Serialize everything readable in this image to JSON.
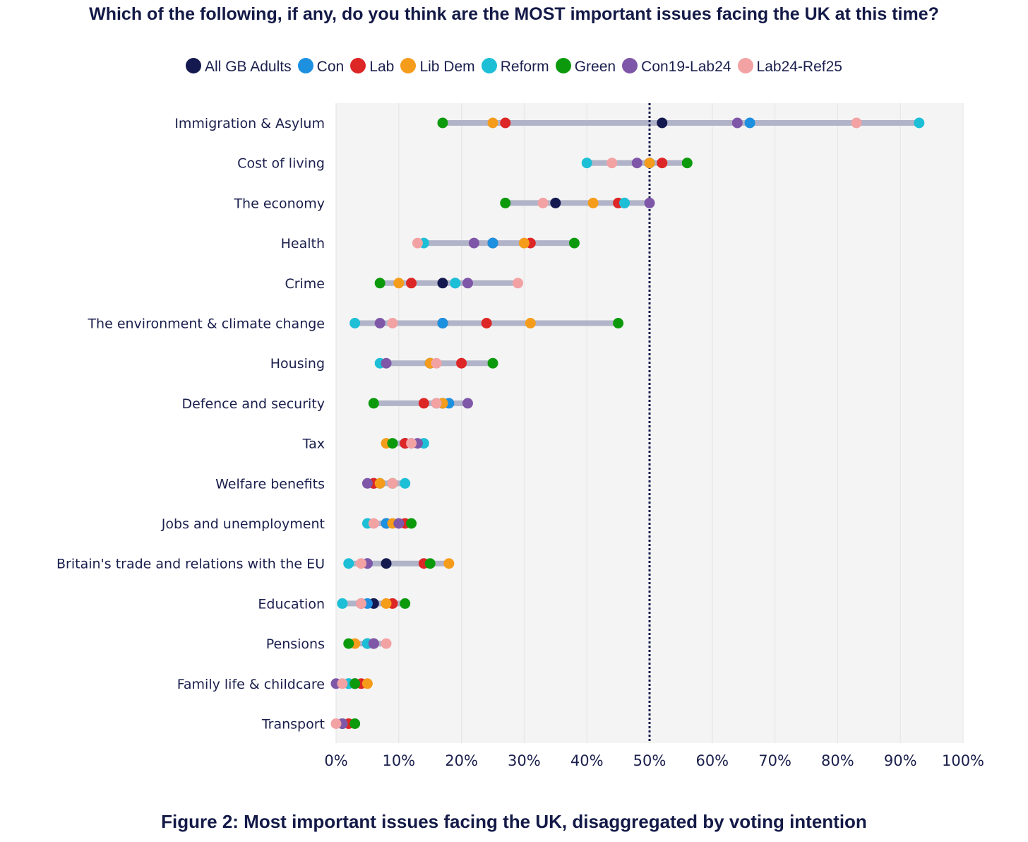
{
  "chart_data": {
    "type": "scatter",
    "subtype": "dumbbell",
    "title": "Which of the following, if any, do you think are the MOST important issues facing the UK at this time?",
    "caption": "Figure 2: Most important issues facing the UK, disaggregated by voting intention",
    "x_axis": {
      "range": [
        0,
        100
      ],
      "ticks": [
        0,
        10,
        20,
        30,
        40,
        50,
        60,
        70,
        80,
        90,
        100
      ],
      "tick_labels": [
        "0%",
        "10%",
        "20%",
        "30%",
        "40%",
        "50%",
        "60%",
        "70%",
        "80%",
        "90%",
        "100%"
      ]
    },
    "reference_line": {
      "x": 50,
      "style": "dotted"
    },
    "grid": true,
    "legend_position": "top",
    "categories": [
      "Immigration & Asylum",
      "Cost of living",
      "The economy",
      "Health",
      "Crime",
      "The environment & climate change",
      "Housing",
      "Defence and security",
      "Tax",
      "Welfare benefits",
      "Jobs and unemployment",
      "Britain's trade and relations with the EU",
      "Education",
      "Pensions",
      "Family life & childcare",
      "Transport"
    ],
    "series": [
      {
        "name": "All GB Adults",
        "color": "#141a4f",
        "values": [
          52,
          50,
          35,
          25,
          17,
          17,
          15,
          17,
          11,
          6,
          8,
          8,
          6,
          5,
          3,
          1
        ]
      },
      {
        "name": "Con",
        "color": "#1e90e0",
        "values": [
          66,
          50,
          46,
          25,
          19,
          17,
          15,
          18,
          12,
          7,
          8,
          5,
          5,
          6,
          2,
          1
        ]
      },
      {
        "name": "Lab",
        "color": "#dd2626",
        "values": [
          27,
          52,
          45,
          31,
          12,
          24,
          20,
          14,
          11,
          6,
          11,
          14,
          9,
          6,
          4,
          2
        ]
      },
      {
        "name": "Lib Dem",
        "color": "#f59c1b",
        "values": [
          25,
          50,
          41,
          30,
          10,
          31,
          15,
          17,
          8,
          7,
          9,
          18,
          8,
          3,
          5,
          1
        ]
      },
      {
        "name": "Reform",
        "color": "#1dbfd6",
        "values": [
          93,
          40,
          46,
          14,
          19,
          3,
          7,
          16,
          14,
          11,
          5,
          2,
          1,
          5,
          2,
          1
        ]
      },
      {
        "name": "Green",
        "color": "#0c9a0c",
        "values": [
          17,
          56,
          27,
          38,
          7,
          45,
          25,
          6,
          9,
          9,
          12,
          15,
          11,
          2,
          3,
          3
        ]
      },
      {
        "name": "Con19-Lab24",
        "color": "#7f57a8",
        "values": [
          64,
          48,
          50,
          22,
          21,
          7,
          8,
          21,
          13,
          5,
          10,
          5,
          4,
          6,
          0,
          1
        ]
      },
      {
        "name": "Lab24-Ref25",
        "color": "#f3a2a4",
        "values": [
          83,
          44,
          33,
          13,
          29,
          9,
          16,
          16,
          12,
          9,
          6,
          4,
          4,
          8,
          1,
          0
        ]
      }
    ]
  }
}
